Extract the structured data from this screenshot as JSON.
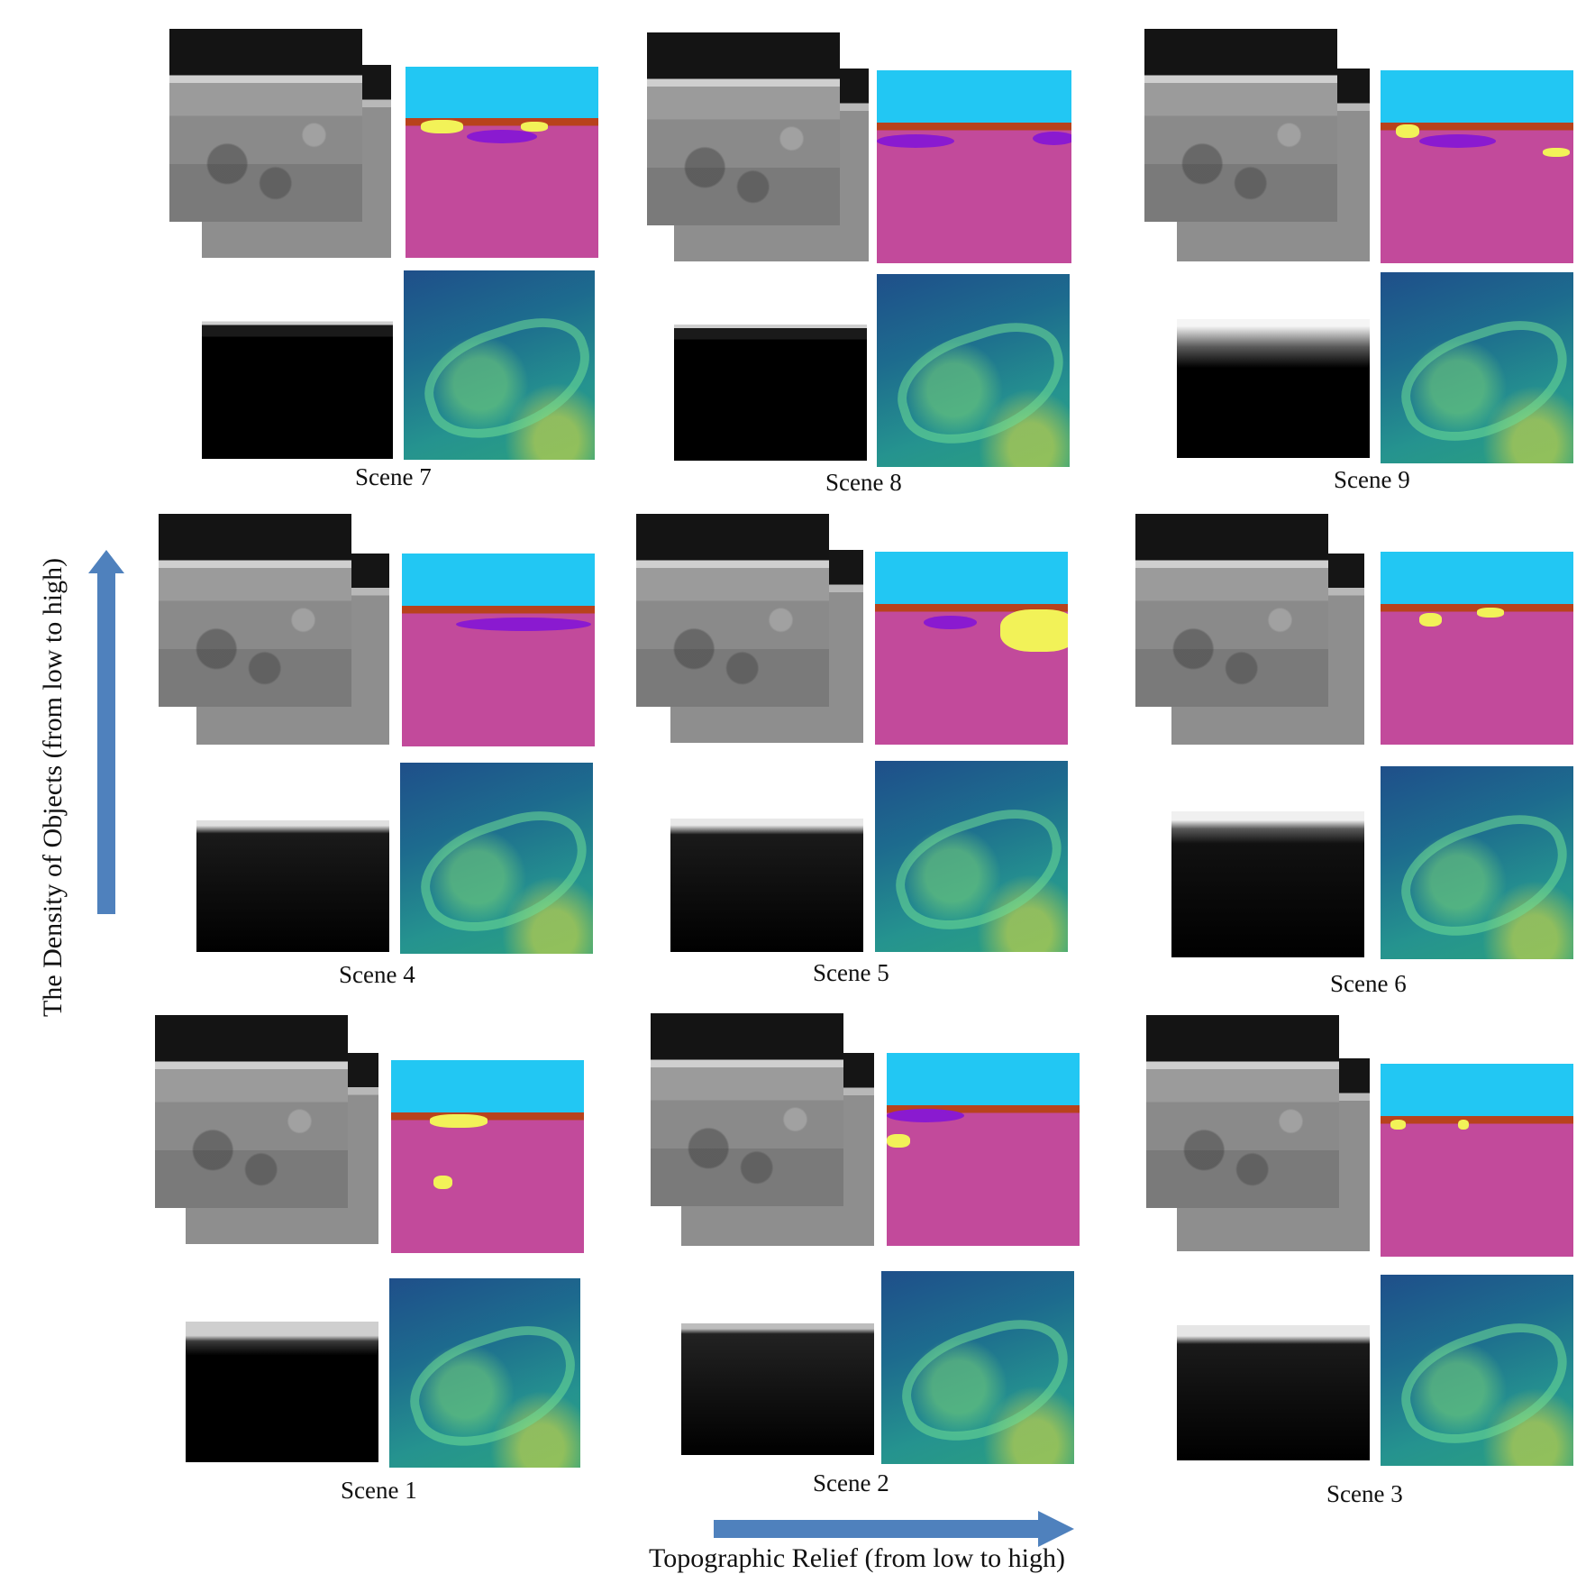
{
  "scenes": [
    {
      "label": "Scene 7"
    },
    {
      "label": "Scene 8"
    },
    {
      "label": "Scene 9"
    },
    {
      "label": "Scene 4"
    },
    {
      "label": "Scene 5"
    },
    {
      "label": "Scene 6"
    },
    {
      "label": "Scene 1"
    },
    {
      "label": "Scene 2"
    },
    {
      "label": "Scene 3"
    }
  ],
  "axes": {
    "x_label": "Topographic Relief (from low to high)",
    "y_label": "The Density of Objects (from low to high)",
    "arrow_color": "#4f81bd"
  },
  "palette": {
    "sky": "#22c7f3",
    "ground": "#c24a9b",
    "mountain": "#b8421c",
    "rock": "#f2f258",
    "crater": "#8a1ad0"
  }
}
